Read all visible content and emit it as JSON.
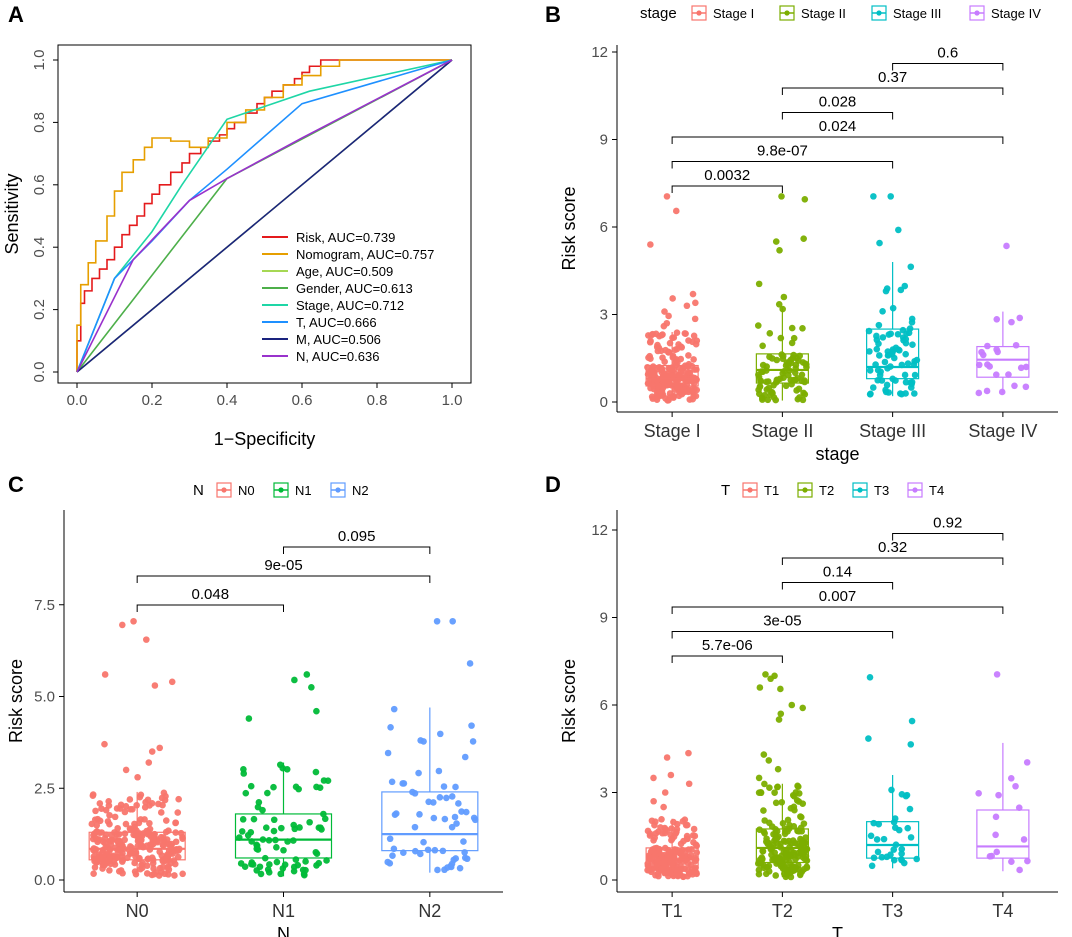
{
  "colors": {
    "stage4": [
      "#F8766D",
      "#7CAE00",
      "#00BFC4",
      "#C77CFF"
    ],
    "n3": [
      "#F8766D",
      "#00BA38",
      "#619CFF"
    ],
    "roc": {
      "Risk": "#E41A1C",
      "Nomogram": "#E69F00",
      "Age": "#A6D854",
      "Gender": "#4DAF4A",
      "Stage": "#1ED6A6",
      "T": "#1E90FF",
      "M": "#1A237E",
      "N": "#9932CC"
    }
  },
  "chart_data": [
    {
      "panel": "A",
      "type": "line",
      "xlabel": "1−Specificity",
      "ylabel": "Sensitivity",
      "xlim": [
        0,
        1
      ],
      "ylim": [
        0,
        1
      ],
      "xticks": [
        "0.0",
        "0.2",
        "0.4",
        "0.6",
        "0.8",
        "1.0"
      ],
      "yticks": [
        "0.0",
        "0.2",
        "0.4",
        "0.6",
        "0.8",
        "1.0"
      ],
      "legend_position": "bottom-right",
      "series": [
        {
          "name": "Risk",
          "label": "Risk, AUC=0.739",
          "x": [
            0,
            0.01,
            0.02,
            0.04,
            0.06,
            0.08,
            0.1,
            0.12,
            0.14,
            0.16,
            0.18,
            0.2,
            0.22,
            0.25,
            0.28,
            0.3,
            0.33,
            0.35,
            0.38,
            0.4,
            0.42,
            0.45,
            0.48,
            0.5,
            0.52,
            0.55,
            0.58,
            0.6,
            0.62,
            0.65,
            0.7,
            0.75,
            1.0
          ],
          "y": [
            0,
            0.1,
            0.22,
            0.26,
            0.3,
            0.33,
            0.36,
            0.4,
            0.44,
            0.47,
            0.5,
            0.54,
            0.57,
            0.6,
            0.64,
            0.67,
            0.7,
            0.72,
            0.74,
            0.76,
            0.78,
            0.8,
            0.83,
            0.86,
            0.88,
            0.9,
            0.92,
            0.94,
            0.96,
            0.98,
            1.0,
            1.0,
            1.0
          ]
        },
        {
          "name": "Nomogram",
          "label": "Nomogram, AUC=0.757",
          "x": [
            0,
            0.01,
            0.03,
            0.05,
            0.08,
            0.1,
            0.12,
            0.15,
            0.18,
            0.2,
            0.25,
            0.3,
            0.35,
            0.4,
            0.45,
            0.5,
            0.55,
            0.6,
            0.65,
            0.7,
            0.8,
            1.0
          ],
          "y": [
            0,
            0.15,
            0.28,
            0.35,
            0.42,
            0.5,
            0.58,
            0.64,
            0.68,
            0.72,
            0.75,
            0.74,
            0.72,
            0.75,
            0.8,
            0.84,
            0.88,
            0.92,
            0.95,
            0.98,
            1.0,
            1.0
          ]
        },
        {
          "name": "Age",
          "label": "Age, AUC=0.509",
          "x": [
            0,
            1
          ],
          "y": [
            0,
            1
          ]
        },
        {
          "name": "Gender",
          "label": "Gender, AUC=0.613",
          "x": [
            0,
            0.4,
            1
          ],
          "y": [
            0,
            0.62,
            1
          ]
        },
        {
          "name": "Stage",
          "label": "Stage, AUC=0.712",
          "x": [
            0,
            0.1,
            0.2,
            0.28,
            0.4,
            0.62,
            1
          ],
          "y": [
            0,
            0.3,
            0.45,
            0.6,
            0.81,
            0.9,
            1
          ]
        },
        {
          "name": "T",
          "label": "T, AUC=0.666",
          "x": [
            0,
            0.1,
            0.2,
            0.3,
            0.4,
            0.6,
            1
          ],
          "y": [
            0,
            0.3,
            0.42,
            0.55,
            0.65,
            0.86,
            1
          ]
        },
        {
          "name": "M",
          "label": "M, AUC=0.506",
          "x": [
            0,
            1
          ],
          "y": [
            0,
            1
          ]
        },
        {
          "name": "N",
          "label": "N, AUC=0.636",
          "x": [
            0,
            0.15,
            0.3,
            0.4,
            0.6,
            1
          ],
          "y": [
            0,
            0.36,
            0.55,
            0.62,
            0.75,
            1
          ]
        }
      ]
    },
    {
      "panel": "B",
      "type": "box",
      "xlabel": "stage",
      "ylabel": "Risk score",
      "legend_title": "stage",
      "categories": [
        "Stage I",
        "Stage II",
        "Stage III",
        "Stage IV"
      ],
      "ylim": [
        0,
        12
      ],
      "yticks": [
        0,
        3,
        6,
        9,
        12
      ],
      "boxes": [
        {
          "lower": 0.05,
          "q1": 0.55,
          "median": 0.8,
          "q3": 1.25,
          "upper": 2.4,
          "n": 230,
          "outliers": [
            7.05,
            6.55,
            5.4,
            3.7,
            3.55,
            3.4,
            3.3,
            3.1,
            2.95,
            2.85,
            2.7,
            2.6
          ]
        },
        {
          "lower": 0.05,
          "q1": 0.65,
          "median": 1.1,
          "q3": 1.65,
          "upper": 3.25,
          "n": 95,
          "outliers": [
            7.05,
            6.95,
            5.6,
            5.5,
            5.2,
            4.05,
            3.6,
            3.35
          ]
        },
        {
          "lower": 0.2,
          "q1": 0.8,
          "median": 1.2,
          "q3": 2.5,
          "upper": 4.8,
          "n": 80,
          "outliers": [
            7.05,
            7.05,
            5.9,
            5.45
          ]
        },
        {
          "lower": 0.3,
          "q1": 0.85,
          "median": 1.45,
          "q3": 1.9,
          "upper": 3.1,
          "n": 22,
          "outliers": [
            5.35
          ]
        }
      ],
      "comparisons": [
        {
          "from": 0,
          "to": 1,
          "label": "0.0032"
        },
        {
          "from": 0,
          "to": 2,
          "label": "9.8e-07"
        },
        {
          "from": 0,
          "to": 3,
          "label": "0.024"
        },
        {
          "from": 1,
          "to": 2,
          "label": "0.028"
        },
        {
          "from": 1,
          "to": 3,
          "label": "0.37"
        },
        {
          "from": 2,
          "to": 3,
          "label": "0.6"
        }
      ]
    },
    {
      "panel": "C",
      "type": "box",
      "xlabel": "N",
      "ylabel": "Risk score",
      "legend_title": "N",
      "categories": [
        "N0",
        "N1",
        "N2"
      ],
      "ylim": [
        0,
        10
      ],
      "yticks": [
        0,
        2.5,
        5,
        7.5
      ],
      "yticklabels": [
        "0.0",
        "2.5",
        "5.0",
        "7.5"
      ],
      "boxes": [
        {
          "lower": 0.1,
          "q1": 0.55,
          "median": 0.85,
          "q3": 1.3,
          "upper": 2.4,
          "n": 280,
          "outliers": [
            7.05,
            6.95,
            6.55,
            5.6,
            5.4,
            5.3,
            3.7,
            3.6,
            3.5,
            3.2,
            3.0,
            2.8
          ]
        },
        {
          "lower": 0.1,
          "q1": 0.6,
          "median": 1.1,
          "q3": 1.8,
          "upper": 3.2,
          "n": 85,
          "outliers": [
            5.6,
            5.45,
            5.25,
            4.6,
            4.4
          ]
        },
        {
          "lower": 0.2,
          "q1": 0.8,
          "median": 1.25,
          "q3": 2.4,
          "upper": 4.7,
          "n": 65,
          "outliers": [
            7.05,
            7.05,
            5.9
          ]
        }
      ],
      "comparisons": [
        {
          "from": 0,
          "to": 1,
          "label": "0.048"
        },
        {
          "from": 0,
          "to": 2,
          "label": "9e-05"
        },
        {
          "from": 1,
          "to": 2,
          "label": "0.095"
        }
      ]
    },
    {
      "panel": "D",
      "type": "box",
      "xlabel": "T",
      "ylabel": "Risk score",
      "legend_title": "T",
      "categories": [
        "T1",
        "T2",
        "T3",
        "T4"
      ],
      "ylim": [
        0,
        12
      ],
      "yticks": [
        0,
        3,
        6,
        9,
        12
      ],
      "boxes": [
        {
          "lower": 0.1,
          "q1": 0.45,
          "median": 0.7,
          "q3": 1.1,
          "upper": 2.1,
          "n": 200,
          "outliers": [
            4.35,
            4.2,
            3.6,
            3.5,
            3.3,
            3.0,
            2.7,
            2.5
          ]
        },
        {
          "lower": 0.1,
          "q1": 0.6,
          "median": 1.1,
          "q3": 1.75,
          "upper": 3.3,
          "n": 190,
          "outliers": [
            7.05,
            7.0,
            6.9,
            6.6,
            6.55,
            6.0,
            5.9,
            5.7,
            5.5,
            4.3,
            4.1,
            3.8,
            3.5
          ]
        },
        {
          "lower": 0.4,
          "q1": 0.75,
          "median": 1.2,
          "q3": 2.0,
          "upper": 3.6,
          "n": 35,
          "outliers": [
            6.95,
            5.45,
            4.85,
            4.65
          ]
        },
        {
          "lower": 0.3,
          "q1": 0.75,
          "median": 1.15,
          "q3": 2.4,
          "upper": 4.7,
          "n": 16,
          "outliers": [
            7.05
          ]
        }
      ],
      "comparisons": [
        {
          "from": 0,
          "to": 1,
          "label": "5.7e-06"
        },
        {
          "from": 0,
          "to": 2,
          "label": "3e-05"
        },
        {
          "from": 0,
          "to": 3,
          "label": "0.007"
        },
        {
          "from": 1,
          "to": 2,
          "label": "0.14"
        },
        {
          "from": 1,
          "to": 3,
          "label": "0.32"
        },
        {
          "from": 2,
          "to": 3,
          "label": "0.92"
        }
      ]
    }
  ]
}
